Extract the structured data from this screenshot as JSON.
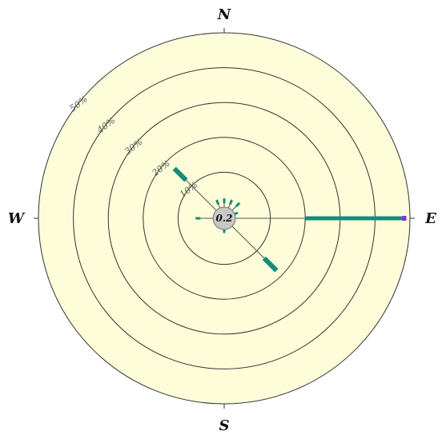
{
  "chart_data": {
    "type": "windrose",
    "title": "",
    "compass": {
      "N": "N",
      "E": "E",
      "S": "S",
      "W": "W"
    },
    "radial_unit": "%",
    "radial_max": 50,
    "rings": [
      10,
      20,
      30,
      40,
      50
    ],
    "ring_labels": [
      "10%",
      "20%",
      "30%",
      "40%",
      "50%"
    ],
    "calm": "0.2",
    "petals": [
      {
        "direction": 0,
        "value": 2.5
      },
      {
        "direction": 22.5,
        "value": 2.5
      },
      {
        "direction": 45,
        "value": 3.0
      },
      {
        "direction": 67.5,
        "value": 1.0
      },
      {
        "direction": 90,
        "value": 48.5
      },
      {
        "direction": 135,
        "value": 18.0
      },
      {
        "direction": 180,
        "value": 1.0
      },
      {
        "direction": 270,
        "value": 5.0
      },
      {
        "direction": 315,
        "value": 17.0
      },
      {
        "direction": 337.5,
        "value": 2.5
      }
    ],
    "colors": {
      "background": "#fdfdd9",
      "petal": "#1a8a7a",
      "calm_fill": "#c8c8c8",
      "east_tip": "#8a2be2"
    }
  }
}
